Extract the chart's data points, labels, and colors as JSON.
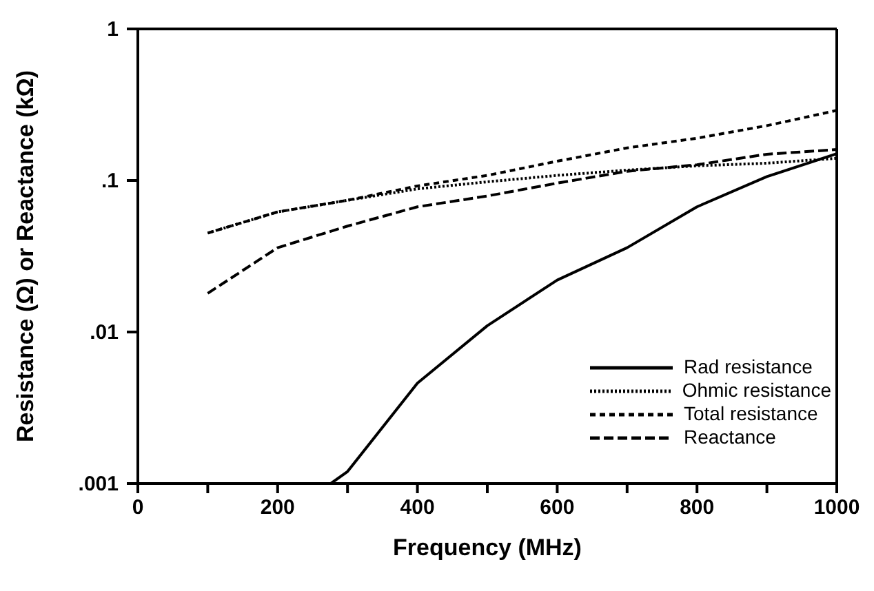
{
  "chart_data": {
    "type": "line",
    "xlabel": "Frequency  (MHz)",
    "ylabel": "Resistance (Ω) or Reactance (kΩ)",
    "log": "y",
    "xlim": [
      0,
      1000
    ],
    "xticks": [
      0,
      {
        "value": 100,
        "label": null
      },
      200,
      {
        "value": 300,
        "label": null
      },
      400,
      {
        "value": 500,
        "label": null
      },
      600,
      {
        "value": 700,
        "label": null
      },
      800,
      {
        "value": 900,
        "label": null
      },
      1000
    ],
    "ylim": [
      0.001,
      1
    ],
    "yticks": [
      {
        "value": 0.001,
        "label": ".001"
      },
      {
        "value": 0.01,
        "label": ".01"
      },
      {
        "value": 0.1,
        "label": ".1"
      },
      {
        "value": 1,
        "label": "1"
      }
    ],
    "grid": false,
    "legend": "bottom right",
    "marker": "none",
    "series": [
      {
        "name": "Rad resistance",
        "color": "#000000",
        "line_style": "solid",
        "x": [
          276,
          300,
          400,
          500,
          600,
          700,
          800,
          900,
          1000
        ],
        "values": [
          0.001,
          0.0012,
          0.0046,
          0.011,
          0.022,
          0.036,
          0.067,
          0.106,
          0.15
        ]
      },
      {
        "name": "Ohmic resistance",
        "color": "#000000",
        "line_style": "dotted",
        "x": [
          100,
          200,
          300,
          400,
          500,
          600,
          700,
          800,
          900,
          1000
        ],
        "values": [
          0.045,
          0.062,
          0.074,
          0.088,
          0.098,
          0.108,
          0.117,
          0.125,
          0.13,
          0.14
        ]
      },
      {
        "name": "Total resistance",
        "color": "#000000",
        "line_style": "dashed",
        "x": [
          100,
          200,
          300,
          400,
          500,
          600,
          700,
          800,
          900,
          1000
        ],
        "values": [
          0.045,
          0.062,
          0.074,
          0.092,
          0.108,
          0.134,
          0.164,
          0.19,
          0.23,
          0.29
        ]
      },
      {
        "name": "Reactance",
        "color": "#000000",
        "line_style": "longdash",
        "x": [
          100,
          200,
          300,
          400,
          500,
          600,
          700,
          800,
          900,
          1000
        ],
        "values": [
          0.018,
          0.036,
          0.05,
          0.067,
          0.079,
          0.096,
          0.115,
          0.127,
          0.149,
          0.16
        ]
      }
    ]
  }
}
